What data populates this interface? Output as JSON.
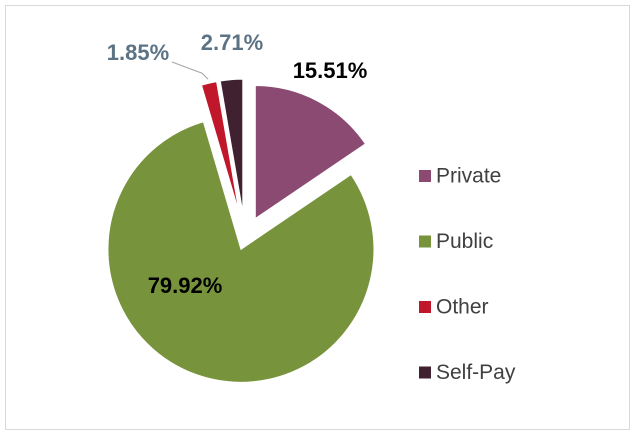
{
  "chart_data": {
    "type": "pie",
    "categories": [
      "Private",
      "Public",
      "Other",
      "Self-Pay"
    ],
    "values": [
      15.51,
      79.92,
      1.85,
      2.71
    ],
    "value_labels": [
      "15.51%",
      "79.92%",
      "1.85%",
      "2.71%"
    ],
    "colors": [
      "#8b4a72",
      "#77933c",
      "#c0182a",
      "#3f2130"
    ],
    "legend": "right"
  }
}
